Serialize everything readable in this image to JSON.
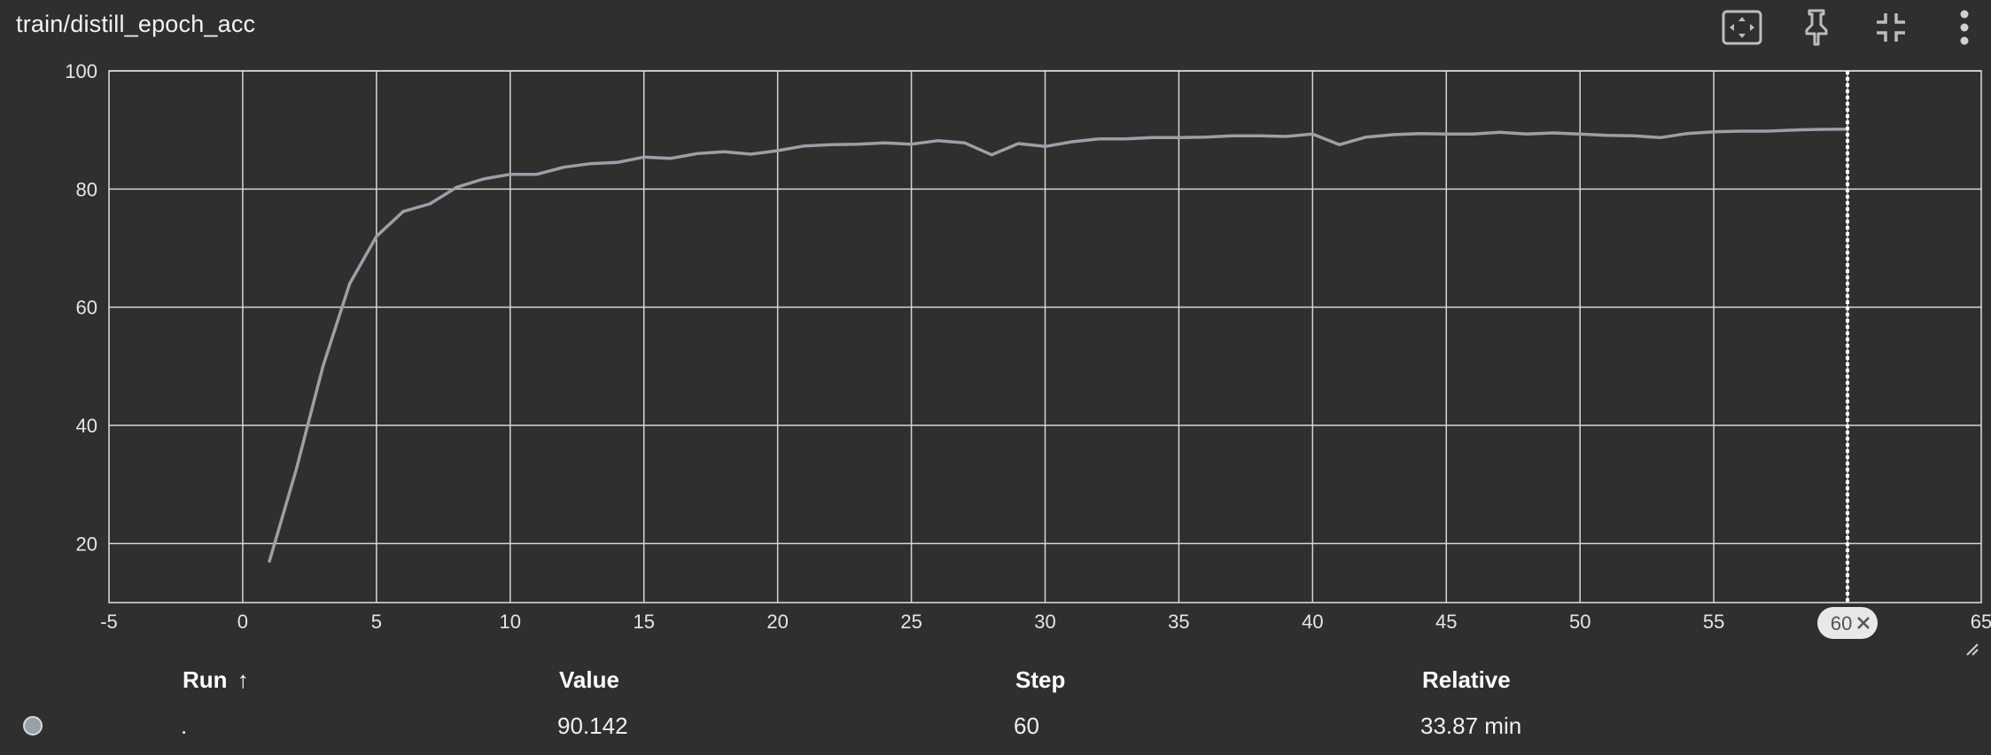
{
  "card": {
    "title": "train/distill_epoch_acc"
  },
  "toolbar": {
    "fit_icon": "fit-to-data-icon",
    "pin_icon": "pin-icon",
    "collapse_icon": "collapse-icon",
    "more_icon": "more-vert-icon"
  },
  "chart_data": {
    "type": "line",
    "title": "train/distill_epoch_acc",
    "xlabel": "",
    "ylabel": "",
    "xlim": [
      -5,
      65
    ],
    "ylim": [
      10,
      100
    ],
    "x_ticks": [
      -5,
      0,
      5,
      10,
      15,
      20,
      25,
      30,
      35,
      40,
      45,
      50,
      55,
      60,
      65
    ],
    "x_tick_labels": [
      "-5",
      "0",
      "5",
      "10",
      "15",
      "20",
      "25",
      "30",
      "35",
      "40",
      "45",
      "50",
      "55",
      "60",
      "65"
    ],
    "y_ticks": [
      20,
      40,
      60,
      80,
      100
    ],
    "y_tick_labels": [
      "20",
      "40",
      "60",
      "80",
      "100"
    ],
    "grid": true,
    "series": [
      {
        "color": "#9aa0a8",
        "x": [
          1,
          2,
          3,
          4,
          5,
          6,
          7,
          8,
          9,
          10,
          11,
          12,
          13,
          14,
          15,
          16,
          17,
          18,
          19,
          20,
          21,
          22,
          23,
          24,
          25,
          26,
          27,
          28,
          29,
          30,
          31,
          32,
          33,
          34,
          35,
          36,
          37,
          38,
          39,
          40,
          41,
          42,
          43,
          44,
          45,
          46,
          47,
          48,
          49,
          50,
          51,
          52,
          53,
          54,
          55,
          56,
          57,
          58,
          59,
          60
        ],
        "y": [
          17,
          32.5,
          50,
          64,
          72,
          76.2,
          77.5,
          80.3,
          81.7,
          82.5,
          82.5,
          83.7,
          84.3,
          84.5,
          85.4,
          85.2,
          86,
          86.3,
          85.9,
          86.5,
          87.3,
          87.5,
          87.6,
          87.8,
          87.6,
          88.2,
          87.8,
          85.8,
          87.7,
          87.2,
          88,
          88.5,
          88.5,
          88.7,
          88.7,
          88.8,
          89,
          89,
          88.9,
          89.3,
          87.5,
          88.8,
          89.2,
          89.4,
          89.3,
          89.3,
          89.6,
          89.3,
          89.5,
          89.3,
          89.1,
          89,
          88.7,
          89.4,
          89.7,
          89.8,
          89.8,
          90,
          90.1,
          90.142
        ]
      }
    ],
    "cursor": {
      "step": 60,
      "label": "60"
    }
  },
  "table": {
    "headers": {
      "run": "Run",
      "value": "Value",
      "step": "Step",
      "relative": "Relative"
    },
    "sort_indicator": "↑",
    "rows": [
      {
        "run": ".",
        "value": "90.142",
        "step": "60",
        "relative": "33.87 min",
        "color": "#9aa0a8"
      }
    ]
  }
}
